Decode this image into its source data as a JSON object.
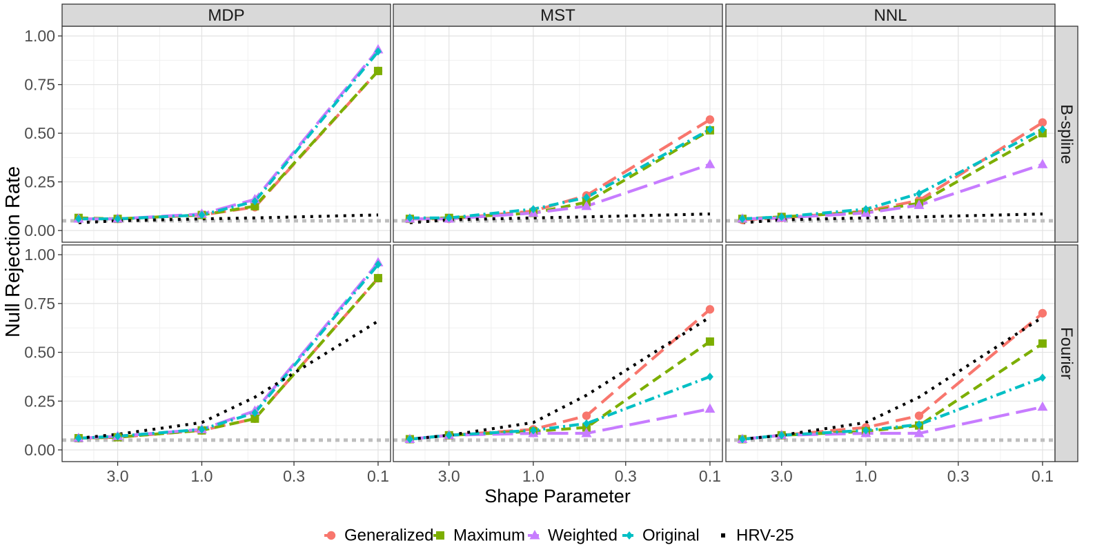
{
  "chart_data": {
    "type": "line",
    "layout": "facet-grid",
    "ylabel": "Null Rejection Rate",
    "xlabel": "Shape Parameter",
    "x": [
      5,
      3,
      1,
      0.5,
      0.1
    ],
    "x_scale": "log-reversed",
    "xlim": [
      6.2,
      0.085
    ],
    "x_ticks": [
      3,
      1,
      0.3,
      0.1
    ],
    "x_tick_labels": [
      "3.0",
      "1.0",
      "0.3",
      "0.1"
    ],
    "ylim": [
      -0.06,
      1.05
    ],
    "y_ticks": [
      0,
      0.25,
      0.5,
      0.75,
      1
    ],
    "y_tick_labels": [
      "0.00",
      "0.25",
      "0.50",
      "0.75",
      "1.00"
    ],
    "reference_line": {
      "y": 0.05,
      "color": "#bebebe"
    },
    "columns": [
      "MDP",
      "MST",
      "NNL"
    ],
    "rows": [
      "B-spline",
      "Fourier"
    ],
    "legend_position": "bottom",
    "series_styles": [
      {
        "name": "Generalized",
        "color": "#F8766D",
        "dash": "22,10",
        "marker": "circle"
      },
      {
        "name": "Maximum",
        "color": "#7CAE00",
        "dash": "14,8",
        "marker": "square"
      },
      {
        "name": "Weighted",
        "color": "#C77CFF",
        "dash": "30,10",
        "marker": "triangle"
      },
      {
        "name": "Original",
        "color": "#00BFC4",
        "dash": "14,6,3,6",
        "marker": "diamond"
      },
      {
        "name": "HRV-25",
        "color": "#000000",
        "dash": "4,8",
        "marker": "none"
      }
    ],
    "panels": [
      {
        "column": "MDP",
        "row": "B-spline",
        "series": [
          {
            "name": "Generalized",
            "values": [
              0.06,
              0.06,
              0.08,
              0.12,
              0.82
            ]
          },
          {
            "name": "Maximum",
            "values": [
              0.065,
              0.06,
              0.08,
              0.125,
              0.82
            ]
          },
          {
            "name": "Weighted",
            "values": [
              0.06,
              0.06,
              0.085,
              0.16,
              0.93
            ]
          },
          {
            "name": "Original",
            "values": [
              0.06,
              0.06,
              0.08,
              0.15,
              0.92
            ]
          },
          {
            "name": "HRV-25",
            "values": [
              0.04,
              0.05,
              0.06,
              0.065,
              0.08
            ]
          }
        ]
      },
      {
        "column": "MST",
        "row": "B-spline",
        "series": [
          {
            "name": "Generalized",
            "values": [
              0.06,
              0.06,
              0.1,
              0.18,
              0.57
            ]
          },
          {
            "name": "Maximum",
            "values": [
              0.06,
              0.065,
              0.09,
              0.145,
              0.515
            ]
          },
          {
            "name": "Weighted",
            "values": [
              0.06,
              0.06,
              0.09,
              0.125,
              0.34
            ]
          },
          {
            "name": "Original",
            "values": [
              0.065,
              0.065,
              0.11,
              0.17,
              0.52
            ]
          },
          {
            "name": "HRV-25",
            "values": [
              0.04,
              0.055,
              0.065,
              0.07,
              0.085
            ]
          }
        ]
      },
      {
        "column": "NNL",
        "row": "B-spline",
        "series": [
          {
            "name": "Generalized",
            "values": [
              0.055,
              0.065,
              0.1,
              0.155,
              0.555
            ]
          },
          {
            "name": "Maximum",
            "values": [
              0.06,
              0.07,
              0.095,
              0.14,
              0.5
            ]
          },
          {
            "name": "Weighted",
            "values": [
              0.06,
              0.065,
              0.09,
              0.13,
              0.34
            ]
          },
          {
            "name": "Original",
            "values": [
              0.06,
              0.07,
              0.11,
              0.19,
              0.52
            ]
          },
          {
            "name": "HRV-25",
            "values": [
              0.04,
              0.055,
              0.065,
              0.07,
              0.085
            ]
          }
        ]
      },
      {
        "column": "MDP",
        "row": "Fourier",
        "series": [
          {
            "name": "Generalized",
            "values": [
              0.06,
              0.065,
              0.1,
              0.16,
              0.88
            ]
          },
          {
            "name": "Maximum",
            "values": [
              0.06,
              0.065,
              0.1,
              0.16,
              0.88
            ]
          },
          {
            "name": "Weighted",
            "values": [
              0.06,
              0.07,
              0.105,
              0.2,
              0.96
            ]
          },
          {
            "name": "Original",
            "values": [
              0.06,
              0.07,
              0.105,
              0.19,
              0.95
            ]
          },
          {
            "name": "HRV-25",
            "values": [
              0.06,
              0.08,
              0.14,
              0.27,
              0.66
            ]
          }
        ]
      },
      {
        "column": "MST",
        "row": "Fourier",
        "series": [
          {
            "name": "Generalized",
            "values": [
              0.055,
              0.075,
              0.105,
              0.175,
              0.72
            ]
          },
          {
            "name": "Maximum",
            "values": [
              0.055,
              0.075,
              0.095,
              0.115,
              0.555
            ]
          },
          {
            "name": "Weighted",
            "values": [
              0.055,
              0.075,
              0.085,
              0.085,
              0.21
            ]
          },
          {
            "name": "Original",
            "values": [
              0.055,
              0.075,
              0.1,
              0.135,
              0.375
            ]
          },
          {
            "name": "HRV-25",
            "values": [
              0.055,
              0.075,
              0.14,
              0.28,
              0.68
            ]
          }
        ]
      },
      {
        "column": "NNL",
        "row": "Fourier",
        "series": [
          {
            "name": "Generalized",
            "values": [
              0.055,
              0.075,
              0.115,
              0.175,
              0.7
            ]
          },
          {
            "name": "Maximum",
            "values": [
              0.055,
              0.075,
              0.095,
              0.125,
              0.545
            ]
          },
          {
            "name": "Weighted",
            "values": [
              0.055,
              0.075,
              0.085,
              0.085,
              0.22
            ]
          },
          {
            "name": "Original",
            "values": [
              0.055,
              0.075,
              0.1,
              0.13,
              0.37
            ]
          },
          {
            "name": "HRV-25",
            "values": [
              0.055,
              0.075,
              0.14,
              0.27,
              0.68
            ]
          }
        ]
      }
    ]
  }
}
